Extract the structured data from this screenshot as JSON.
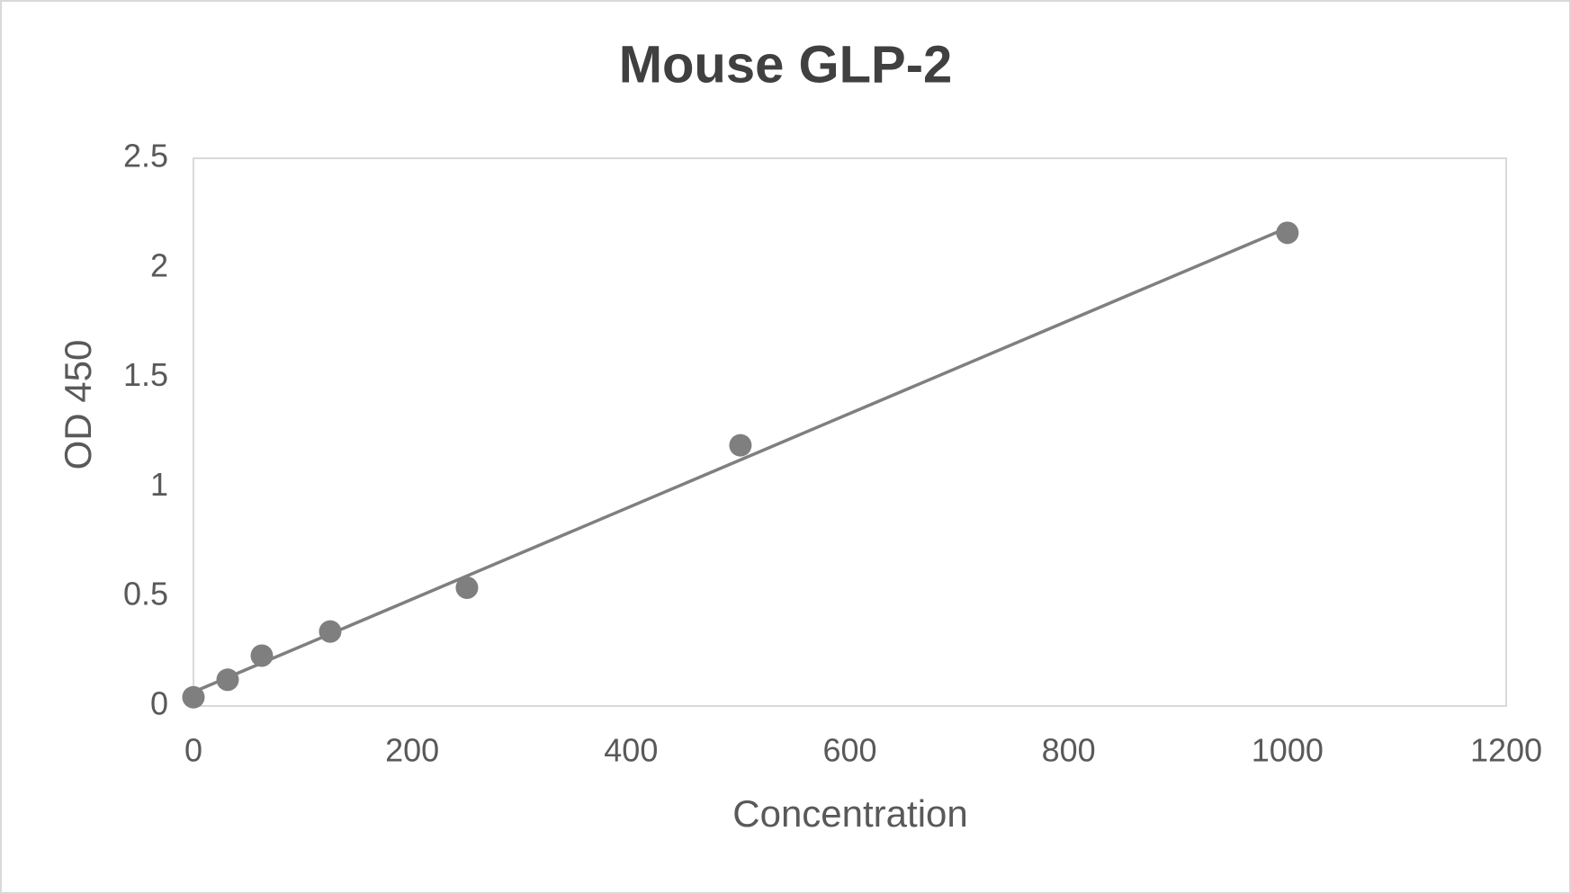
{
  "chart_data": {
    "type": "scatter",
    "title": "Mouse GLP-2",
    "x_label": "Concentration",
    "y_label": "OD 450",
    "x": [
      0,
      31.25,
      62.5,
      125,
      250,
      500,
      1000
    ],
    "values": [
      0.04,
      0.12,
      0.23,
      0.34,
      0.54,
      1.19,
      2.16
    ],
    "color": "#7f7f7f",
    "trendline": "linear",
    "trendline_color": "#7f7f7f",
    "xlim": [
      0,
      1200
    ],
    "xticks": [
      0,
      200,
      400,
      600,
      800,
      1000,
      1200
    ],
    "ylim": [
      0,
      2.5
    ],
    "yticks": [
      0,
      0.5,
      1,
      1.5,
      2,
      2.5
    ],
    "grid": false
  }
}
